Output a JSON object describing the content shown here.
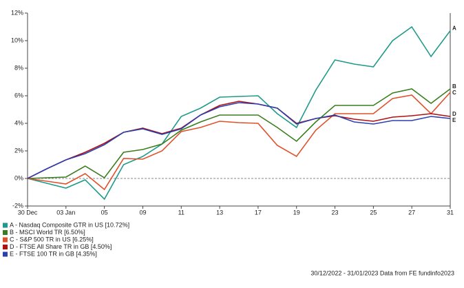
{
  "chart_data": {
    "type": "line",
    "categories": [
      "30 Dec",
      null,
      "03 Jan",
      null,
      "05",
      null,
      "09",
      null,
      "11",
      null,
      "13",
      null,
      "17",
      null,
      "19",
      null,
      "23",
      null,
      "25",
      null,
      "27",
      null,
      "31"
    ],
    "ylim": [
      -2,
      12
    ],
    "yticks": [
      {
        "value": -2,
        "label": "-2%"
      },
      {
        "value": 0,
        "label": "0%"
      },
      {
        "value": 2,
        "label": "2%"
      },
      {
        "value": 4,
        "label": "4%"
      },
      {
        "value": 6,
        "label": "6%"
      },
      {
        "value": 8,
        "label": "8%"
      },
      {
        "value": 10,
        "label": "10%"
      },
      {
        "value": 12,
        "label": "12%"
      }
    ],
    "zero_line": true,
    "series": [
      {
        "tag": "A",
        "name": "A - Nasdaq Composite GTR in US [10.72%]",
        "color": "#1f9a8a",
        "values": [
          0,
          -0.35,
          -0.7,
          -0.1,
          -1.5,
          1.0,
          1.6,
          2.5,
          4.5,
          5.1,
          5.9,
          5.95,
          6.0,
          4.7,
          3.7,
          6.4,
          8.6,
          8.3,
          8.1,
          10.0,
          11.0,
          8.85,
          10.72
        ]
      },
      {
        "tag": "B",
        "name": "B - MSCI World TR [6.50%]",
        "color": "#3a7d1e",
        "values": [
          0,
          0.05,
          0.1,
          0.9,
          0.05,
          1.9,
          2.1,
          2.5,
          3.5,
          4.1,
          4.6,
          4.6,
          4.6,
          3.7,
          2.7,
          4.1,
          5.3,
          5.3,
          5.3,
          6.2,
          6.5,
          5.45,
          6.5
        ]
      },
      {
        "tag": "C",
        "name": "C - S&P 500 TR in US [6.25%]",
        "color": "#e0502a",
        "values": [
          0,
          -0.2,
          -0.4,
          0.35,
          -0.8,
          1.45,
          1.4,
          2.0,
          3.4,
          3.7,
          4.15,
          4.05,
          4.0,
          2.4,
          1.6,
          3.5,
          4.7,
          4.7,
          4.7,
          5.8,
          6.05,
          4.7,
          6.25
        ]
      },
      {
        "tag": "D",
        "name": "D - FTSE All Share TR in GB [4.50%]",
        "color": "#b01010",
        "values": [
          0,
          0.7,
          1.35,
          1.9,
          2.55,
          3.35,
          3.65,
          3.25,
          3.65,
          4.6,
          5.3,
          5.6,
          5.4,
          5.1,
          4.0,
          4.35,
          4.55,
          4.3,
          4.15,
          4.45,
          4.55,
          4.7,
          4.5
        ]
      },
      {
        "tag": "E",
        "name": "E - FTSE 100 TR in GB [4.35%]",
        "color": "#2a3fb0",
        "values": [
          0,
          0.7,
          1.35,
          1.8,
          2.45,
          3.35,
          3.6,
          3.2,
          3.6,
          4.6,
          5.2,
          5.5,
          5.4,
          5.1,
          3.95,
          4.35,
          4.6,
          4.1,
          3.95,
          4.2,
          4.2,
          4.5,
          4.35
        ]
      }
    ],
    "footer": "30/12/2022 - 31/01/2023 Data from FE fundinfo2023"
  }
}
